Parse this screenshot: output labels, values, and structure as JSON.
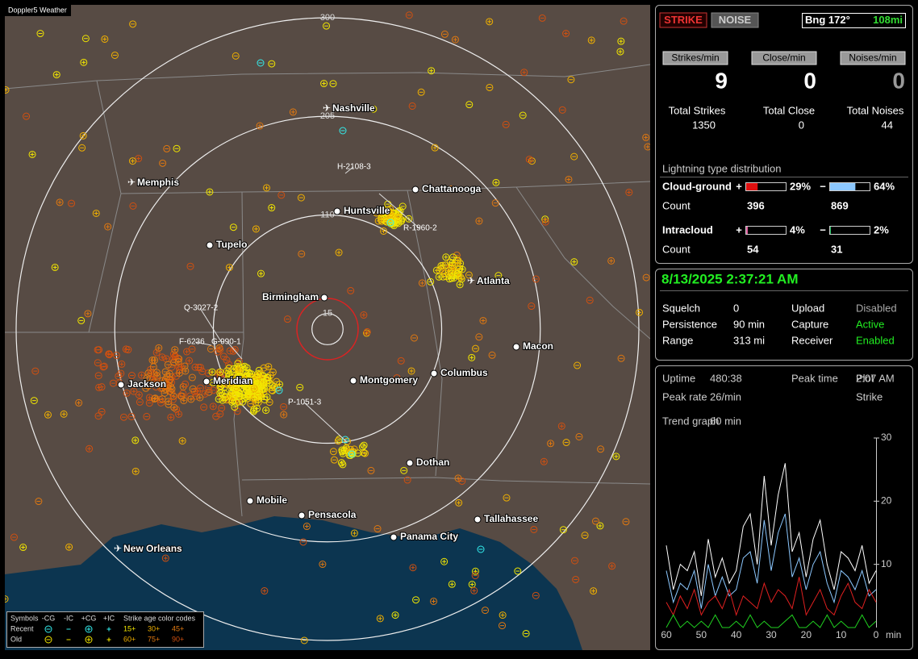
{
  "map": {
    "title": "Doppler5 Weather",
    "range_rings": [
      300,
      205,
      110,
      15
    ],
    "cities": [
      "Nashville",
      "Memphis",
      "Chattanooga",
      "Huntsville",
      "Tupelo",
      "Atlanta",
      "Birmingham",
      "Macon",
      "Montgomery",
      "Columbus",
      "Jackson",
      "Meridian",
      "Dothan",
      "Mobile",
      "Pensacola",
      "Tallahassee",
      "Panama City",
      "New Orleans"
    ],
    "strike_labels": [
      "H-2108-3",
      "R-1960-2",
      "Q-3027-2",
      "F-6236",
      "G-990-1",
      "P-1051-3"
    ],
    "legend": {
      "symbols": "Symbols",
      "types": [
        "-CG",
        "-IC",
        "+CG",
        "+IC"
      ],
      "age_title": "Strike age color codes",
      "recent": "Recent",
      "old": "Old",
      "recent_ages": [
        "15+",
        "30+",
        "45+"
      ],
      "old_ages": [
        "60+",
        "75+",
        "90+"
      ]
    }
  },
  "status": {
    "strike_button": "STRIKE",
    "noise_button": "NOISE",
    "bearing": "Bng 172°",
    "distance": "108mi",
    "rates": [
      {
        "label": "Strikes/min",
        "value": 9,
        "total_label": "Total Strikes",
        "total": 1350
      },
      {
        "label": "Close/min",
        "value": 0,
        "total_label": "Total Close",
        "total": 0
      },
      {
        "label": "Noises/min",
        "value": 0,
        "total_label": "Total Noises",
        "total": 44
      }
    ],
    "distribution_title": "Lightning type distribution",
    "count_label": "Count",
    "distribution": [
      {
        "label": "Cloud-ground",
        "plus": {
          "sign": "+",
          "value": 29,
          "value_label": "29%",
          "count": 396
        },
        "minus": {
          "sign": "−",
          "value": 64,
          "value_label": "64%",
          "count": 869
        }
      },
      {
        "label": "Intracloud",
        "plus": {
          "sign": "+",
          "value": 4,
          "value_label": "4%",
          "count": 54
        },
        "minus": {
          "sign": "−",
          "value": 2,
          "value_label": "2%",
          "count": 31
        }
      }
    ]
  },
  "settings": {
    "datetime": "8/13/2025 2:37:21 AM",
    "rows": [
      [
        {
          "label": "Squelch",
          "value": "0"
        },
        {
          "label": "Upload",
          "value": "Disabled"
        }
      ],
      [
        {
          "label": "Persistence",
          "value": "90 min"
        },
        {
          "label": "Capture",
          "value": "Active"
        }
      ],
      [
        {
          "label": "Range",
          "value": "313 mi"
        },
        {
          "label": "Receiver",
          "value": "Enabled"
        }
      ]
    ]
  },
  "stats": {
    "rows": [
      [
        {
          "label": "Uptime",
          "value": "480:38"
        },
        {
          "label": "Peak time",
          "value": "2:07 AM"
        },
        {
          "label": "Plot",
          "value": ""
        }
      ],
      [
        {
          "label": "Peak rate",
          "value": "26/min"
        },
        {
          "label": "",
          "value": ""
        },
        {
          "label": "Strike",
          "value": ""
        }
      ]
    ],
    "trend_label": "Trend graph",
    "trend_span": "60 min"
  },
  "chart_data": {
    "type": "line",
    "x_unit": "min",
    "x": [
      60,
      58,
      56,
      54,
      52,
      50,
      48,
      46,
      44,
      42,
      40,
      38,
      36,
      34,
      32,
      30,
      28,
      26,
      24,
      22,
      20,
      18,
      16,
      14,
      12,
      10,
      8,
      6,
      4,
      2,
      0
    ],
    "xlim": [
      60,
      0
    ],
    "xticks": [
      60,
      50,
      40,
      30,
      20,
      10,
      0
    ],
    "ylim": [
      0,
      30
    ],
    "yticks": [
      10,
      20,
      30
    ],
    "series": [
      {
        "color": "#ffffff",
        "values": [
          13,
          6,
          10,
          9,
          12,
          5,
          14,
          8,
          11,
          7,
          9,
          16,
          18,
          10,
          24,
          13,
          21,
          26,
          12,
          15,
          8,
          14,
          17,
          10,
          6,
          12,
          11,
          9,
          13,
          7,
          9
        ]
      },
      {
        "color": "#8cc8ff",
        "values": [
          9,
          4,
          7,
          6,
          9,
          3,
          10,
          5,
          8,
          5,
          6,
          11,
          12,
          7,
          17,
          9,
          15,
          18,
          8,
          11,
          6,
          10,
          12,
          7,
          4,
          9,
          8,
          6,
          9,
          5,
          6
        ]
      },
      {
        "color": "#e02020",
        "values": [
          4,
          2,
          5,
          3,
          6,
          2,
          4,
          5,
          3,
          6,
          2,
          5,
          4,
          3,
          7,
          4,
          6,
          5,
          3,
          8,
          2,
          4,
          6,
          3,
          2,
          5,
          7,
          4,
          3,
          6,
          4
        ]
      },
      {
        "color": "#20d020",
        "values": [
          0,
          2,
          0,
          1,
          0,
          1,
          0,
          2,
          0,
          0,
          1,
          0,
          2,
          0,
          1,
          0,
          0,
          1,
          2,
          0,
          0,
          1,
          0,
          2,
          0,
          1,
          0,
          0,
          2,
          0,
          1
        ]
      }
    ]
  }
}
